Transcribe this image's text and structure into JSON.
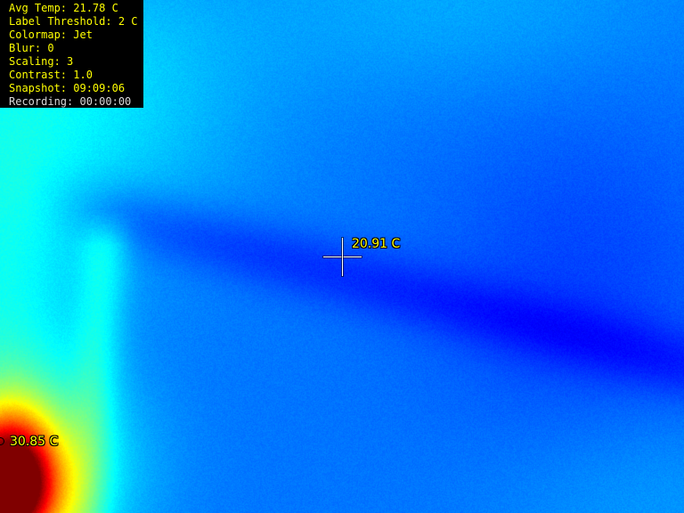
{
  "overlay": {
    "lines": [
      "Avg Temp: 21.78 C",
      "Label Threshold: 2 C",
      "Colormap: Jet",
      "Blur: 0",
      "Scaling: 3",
      "Contrast: 1.0",
      "Snapshot: 09:09:06",
      "Recording: 00:00:00"
    ]
  },
  "readings": {
    "center": "20.91 C",
    "hotspot": "30.85 C"
  },
  "colors": {
    "hud_text": "#ffff00",
    "hud_background": "#000000",
    "crosshair": "#ffffff",
    "colormap": "jet"
  }
}
